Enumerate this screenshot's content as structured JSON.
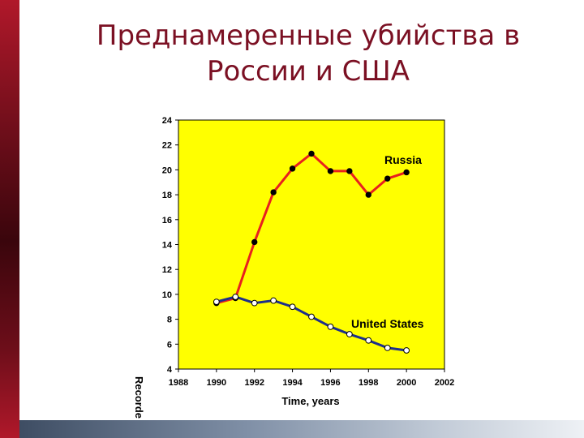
{
  "slide": {
    "title": "Преднамеренные убийства в России и США"
  },
  "colors": {
    "plot_background": "#ffff00",
    "russia_line": "#e8201e",
    "us_line": "#1d2f8c",
    "title": "#7b1023"
  },
  "chart_data": {
    "type": "line",
    "xlabel": "Time, years",
    "ylabel": "Recorde",
    "xlim": [
      1988,
      2002
    ],
    "ylim": [
      4,
      24
    ],
    "x_ticks": [
      "1988",
      "1990",
      "1992",
      "1994",
      "1996",
      "1998",
      "2000",
      "2002"
    ],
    "y_ticks": [
      "4",
      "6",
      "8",
      "10",
      "12",
      "14",
      "16",
      "18",
      "20",
      "22",
      "24"
    ],
    "grid": false,
    "series": [
      {
        "name": "Russia",
        "marker": "filled-circle",
        "x": [
          1990,
          1991,
          1992,
          1993,
          1994,
          1995,
          1996,
          1997,
          1998,
          1999,
          2000
        ],
        "y": [
          9.3,
          9.7,
          14.2,
          18.2,
          20.1,
          21.3,
          19.9,
          19.9,
          18.0,
          19.3,
          19.8
        ]
      },
      {
        "name": "United States",
        "marker": "open-circle",
        "x": [
          1990,
          1991,
          1992,
          1993,
          1994,
          1995,
          1996,
          1997,
          1998,
          1999,
          2000
        ],
        "y": [
          9.4,
          9.8,
          9.3,
          9.5,
          9.0,
          8.2,
          7.4,
          6.8,
          6.3,
          5.7,
          5.5
        ]
      }
    ]
  }
}
